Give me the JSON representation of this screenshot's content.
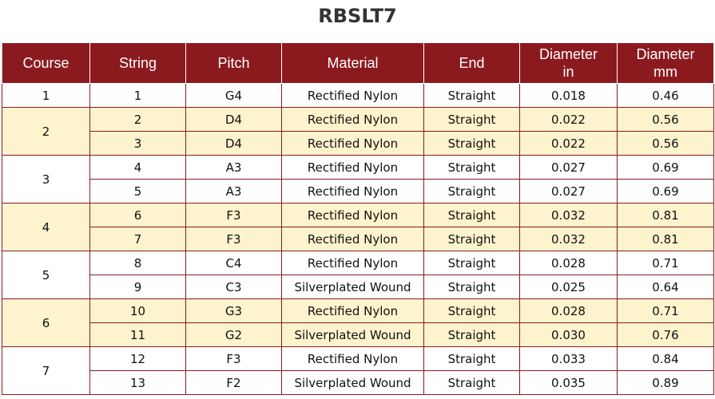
{
  "title": "RBSLT7",
  "table": {
    "header": [
      "Course",
      "String",
      "Pitch",
      "Material",
      "End",
      [
        "Diameter",
        "in"
      ],
      [
        "Diameter",
        "mm"
      ]
    ],
    "courses": [
      {
        "course": "1",
        "strings": [
          [
            "1",
            "G4",
            "Rectified Nylon",
            "Straight",
            "0.018",
            "0.46"
          ]
        ]
      },
      {
        "course": "2",
        "strings": [
          [
            "2",
            "D4",
            "Rectified Nylon",
            "Straight",
            "0.022",
            "0.56"
          ],
          [
            "3",
            "D4",
            "Rectified Nylon",
            "Straight",
            "0.022",
            "0.56"
          ]
        ]
      },
      {
        "course": "3",
        "strings": [
          [
            "4",
            "A3",
            "Rectified Nylon",
            "Straight",
            "0.027",
            "0.69"
          ],
          [
            "5",
            "A3",
            "Rectified Nylon",
            "Straight",
            "0.027",
            "0.69"
          ]
        ]
      },
      {
        "course": "4",
        "strings": [
          [
            "6",
            "F3",
            "Rectified Nylon",
            "Straight",
            "0.032",
            "0.81"
          ],
          [
            "7",
            "F3",
            "Rectified Nylon",
            "Straight",
            "0.032",
            "0.81"
          ]
        ]
      },
      {
        "course": "5",
        "strings": [
          [
            "8",
            "C4",
            "Rectified Nylon",
            "Straight",
            "0.028",
            "0.71"
          ],
          [
            "9",
            "C3",
            "Silverplated Wound",
            "Straight",
            "0.025",
            "0.64"
          ]
        ]
      },
      {
        "course": "6",
        "strings": [
          [
            "10",
            "G3",
            "Rectified Nylon",
            "Straight",
            "0.028",
            "0.71"
          ],
          [
            "11",
            "G2",
            "Silverplated Wound",
            "Straight",
            "0.030",
            "0.76"
          ]
        ]
      },
      {
        "course": "7",
        "strings": [
          [
            "12",
            "F3",
            "Rectified Nylon",
            "Straight",
            "0.033",
            "0.84"
          ],
          [
            "13",
            "F2",
            "Silverplated Wound",
            "Straight",
            "0.035",
            "0.89"
          ]
        ]
      }
    ]
  }
}
